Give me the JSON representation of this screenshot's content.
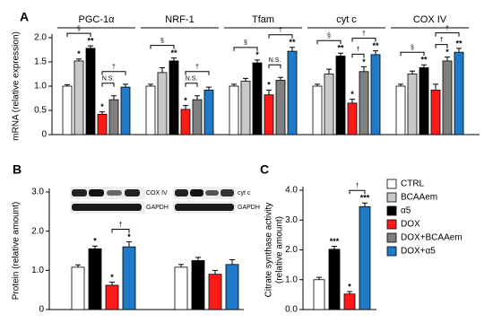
{
  "chart_data": [
    {
      "type": "bar",
      "panel": "A",
      "ylabel": "mRNA (relative expression)",
      "categories": [
        "PGC-1α",
        "NRF-1",
        "Tfam",
        "cyt c",
        "COX IV"
      ],
      "ylim": [
        0,
        2
      ],
      "yticks": [
        0,
        0.5,
        {
          "value": 1,
          "label": "1.0"
        },
        1.5,
        {
          "value": 2,
          "label": "2.0"
        }
      ],
      "series": [
        {
          "name": "CTRL",
          "color": "#ffffff",
          "values": [
            1,
            1,
            1,
            1,
            1
          ],
          "errors": [
            0.03,
            0.04,
            0.04,
            0.04,
            0.04
          ],
          "labels": [
            null,
            null,
            null,
            null,
            null
          ]
        },
        {
          "name": "BCAAem",
          "color": "#c8c8c8",
          "values": [
            1.52,
            1.28,
            1.1,
            1.25,
            1.25
          ],
          "errors": [
            0.04,
            0.1,
            0.06,
            0.1,
            0.06
          ],
          "labels": [
            "*",
            null,
            null,
            null,
            null
          ]
        },
        {
          "name": "α5",
          "color": "#000000",
          "values": [
            1.78,
            1.52,
            1.48,
            1.62,
            1.38
          ],
          "errors": [
            0.05,
            0.06,
            0.06,
            0.06,
            0.06
          ],
          "labels": [
            "**",
            "**",
            "*",
            "**",
            "**"
          ]
        },
        {
          "name": "DOX",
          "color": "#ff1a1a",
          "values": [
            0.42,
            0.52,
            0.82,
            0.65,
            0.92
          ],
          "errors": [
            0.05,
            0.08,
            0.1,
            0.08,
            0.12
          ],
          "labels": [
            "*",
            "*",
            "*",
            "*",
            null
          ]
        },
        {
          "name": "DOX+BCAAem",
          "color": "#808080",
          "values": [
            0.72,
            0.72,
            1.12,
            1.3,
            1.52
          ],
          "errors": [
            0.08,
            0.08,
            0.06,
            0.1,
            0.08
          ],
          "labels": [
            null,
            null,
            null,
            "*",
            "*"
          ]
        },
        {
          "name": "DOX+α5",
          "color": "#1f7ac8",
          "values": [
            0.98,
            0.92,
            1.72,
            1.65,
            1.7
          ],
          "errors": [
            0.06,
            0.06,
            0.08,
            0.08,
            0.08
          ],
          "labels": [
            null,
            null,
            "**",
            "**",
            "**"
          ]
        }
      ],
      "comparisons": [
        [
          {
            "pair": [
              "CTRL",
              "α5"
            ],
            "label": "§"
          },
          {
            "pair": [
              "DOX",
              "DOX+BCAAem"
            ],
            "label": "N.S."
          },
          {
            "pair": [
              "DOX",
              "DOX+α5"
            ],
            "label": "†"
          }
        ],
        [
          {
            "pair": [
              "CTRL",
              "α5"
            ],
            "label": "§"
          },
          {
            "pair": [
              "DOX",
              "DOX+BCAAem"
            ],
            "label": "N.S."
          },
          {
            "pair": [
              "DOX",
              "DOX+α5"
            ],
            "label": "†"
          }
        ],
        [
          {
            "pair": [
              "CTRL",
              "α5"
            ],
            "label": "§"
          },
          {
            "pair": [
              "DOX",
              "DOX+BCAAem"
            ],
            "label": "N.S."
          },
          {
            "pair": [
              "DOX",
              "DOX+α5"
            ],
            "label": "†"
          }
        ],
        [
          {
            "pair": [
              "CTRL",
              "α5"
            ],
            "label": "§"
          },
          {
            "pair": [
              "DOX",
              "DOX+BCAAem"
            ],
            "label": "†"
          },
          {
            "pair": [
              "DOX",
              "DOX+α5"
            ],
            "label": "†"
          }
        ],
        [
          {
            "pair": [
              "CTRL",
              "α5"
            ],
            "label": "§"
          },
          {
            "pair": [
              "DOX",
              "DOX+BCAAem"
            ],
            "label": "†"
          },
          {
            "pair": [
              "DOX",
              "DOX+α5"
            ],
            "label": "†"
          }
        ]
      ]
    },
    {
      "type": "bar",
      "panel": "B",
      "ylabel": "Protein (relative amount)",
      "categories": [
        "COX IV",
        "cyt c"
      ],
      "loading_control": "GAPDH",
      "ylim": [
        0,
        3
      ],
      "yticks": [
        0,
        {
          "value": 1,
          "label": "1.0"
        },
        {
          "value": 2,
          "label": "2.0"
        },
        {
          "value": 3,
          "label": "3.0"
        }
      ],
      "series": [
        {
          "name": "CTRL",
          "color": "#ffffff",
          "values": [
            1.08,
            1.08
          ],
          "errors": [
            0.06,
            0.07
          ],
          "labels": [
            null,
            null
          ]
        },
        {
          "name": "α5",
          "color": "#000000",
          "values": [
            1.55,
            1.25
          ],
          "errors": [
            0.07,
            0.08
          ],
          "labels": [
            "*",
            null
          ]
        },
        {
          "name": "DOX",
          "color": "#ff1a1a",
          "values": [
            0.62,
            0.9
          ],
          "errors": [
            0.08,
            0.1
          ],
          "labels": [
            "*",
            null
          ]
        },
        {
          "name": "DOX+α5",
          "color": "#1f7ac8",
          "values": [
            1.6,
            1.15
          ],
          "errors": [
            0.13,
            0.12
          ],
          "labels": [
            "*",
            null
          ]
        }
      ],
      "comparisons": [
        [
          {
            "pair": [
              "DOX",
              "DOX+α5"
            ],
            "label": "†"
          }
        ],
        []
      ]
    },
    {
      "type": "bar",
      "panel": "C",
      "ylabel": [
        "Citrate synthase activity",
        "(relative amount)"
      ],
      "categories": [
        null
      ],
      "ylim": [
        0,
        4
      ],
      "yticks": [
        {
          "value": 0,
          "label": "0.0"
        },
        {
          "value": 1,
          "label": "1.0"
        },
        {
          "value": 2,
          "label": "2.0"
        },
        {
          "value": 3,
          "label": "3.0"
        },
        {
          "value": 4,
          "label": "4.0"
        }
      ],
      "series": [
        {
          "name": "CTRL",
          "color": "#ffffff",
          "values": [
            1.0
          ],
          "errors": [
            0.08
          ],
          "labels": [
            null
          ]
        },
        {
          "name": "α5",
          "color": "#000000",
          "values": [
            2.02
          ],
          "errors": [
            0.1
          ],
          "labels": [
            "***"
          ]
        },
        {
          "name": "DOX",
          "color": "#ff1a1a",
          "values": [
            0.52
          ],
          "errors": [
            0.08
          ],
          "labels": [
            "*"
          ]
        },
        {
          "name": "DOX+α5",
          "color": "#1f7ac8",
          "values": [
            3.45
          ],
          "errors": [
            0.12
          ],
          "labels": [
            "***"
          ]
        }
      ],
      "comparisons": [
        [
          {
            "pair": [
              "DOX",
              "DOX+α5"
            ],
            "label": "†"
          }
        ]
      ]
    }
  ]
}
